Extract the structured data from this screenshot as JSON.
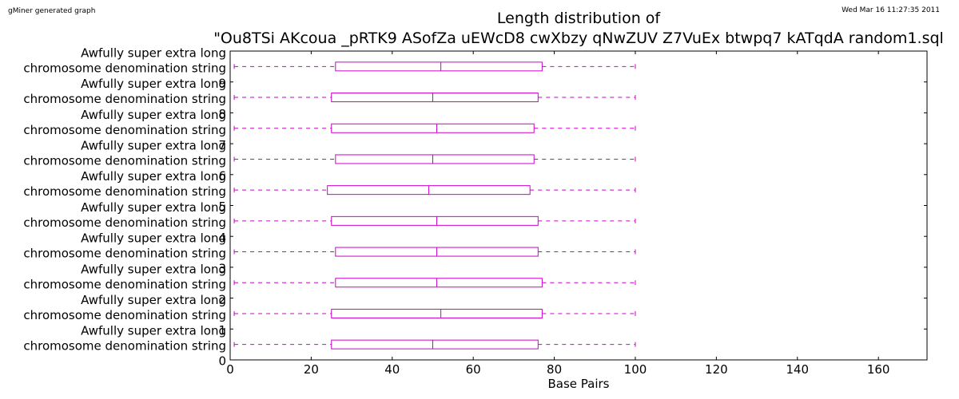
{
  "header": {
    "generator": "gMiner generated graph",
    "timestamp": "Wed Mar 16 11:27:35 2011"
  },
  "colors": {
    "box": "#cc00cc",
    "axis": "#000000",
    "background": "#ffffff"
  },
  "chart_data": {
    "type": "boxplot",
    "orientation": "horizontal",
    "title": "Length distribution of",
    "subtitle": "\"Ou8TSi AKcoua _pRTK9 ASofZa uEWcD8 cwXbzy qNwZUV Z7VuEx btwpq7 kATqdA random1.sql",
    "xlabel": "Base Pairs",
    "xlim": [
      0,
      172
    ],
    "xticks": [
      0,
      20,
      40,
      60,
      80,
      100,
      120,
      140,
      160
    ],
    "ylim": [
      0,
      10
    ],
    "category_label_lines": [
      "Awfully super extra long",
      "chromosome denomination string"
    ],
    "category_indices": [
      "9",
      "8",
      "7",
      "6",
      "5",
      "4",
      "3",
      "2",
      "1",
      "0"
    ],
    "series": [
      {
        "min": 1,
        "q1": 26,
        "median": 52,
        "q3": 77,
        "max": 100
      },
      {
        "min": 1,
        "q1": 25,
        "median": 50,
        "q3": 76,
        "max": 100
      },
      {
        "min": 1,
        "q1": 25,
        "median": 51,
        "q3": 75,
        "max": 100
      },
      {
        "min": 1,
        "q1": 26,
        "median": 50,
        "q3": 75,
        "max": 100
      },
      {
        "min": 1,
        "q1": 24,
        "median": 49,
        "q3": 74,
        "max": 100
      },
      {
        "min": 1,
        "q1": 25,
        "median": 51,
        "q3": 76,
        "max": 100
      },
      {
        "min": 1,
        "q1": 26,
        "median": 51,
        "q3": 76,
        "max": 100
      },
      {
        "min": 1,
        "q1": 26,
        "median": 51,
        "q3": 77,
        "max": 100
      },
      {
        "min": 1,
        "q1": 25,
        "median": 52,
        "q3": 77,
        "max": 100
      },
      {
        "min": 1,
        "q1": 25,
        "median": 50,
        "q3": 76,
        "max": 100
      }
    ]
  }
}
